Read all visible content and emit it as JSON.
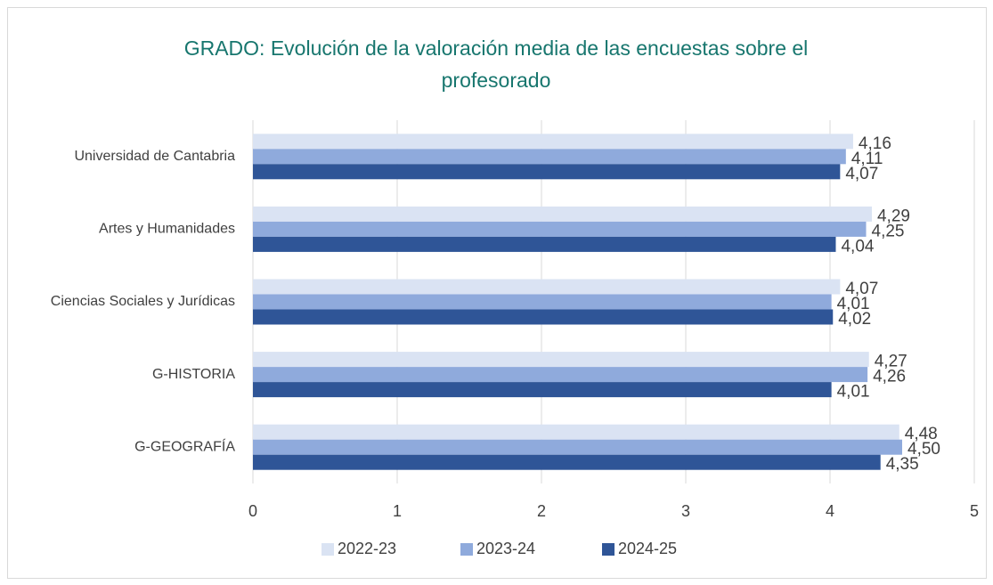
{
  "chart_data": {
    "type": "hbar",
    "title": "GRADO: Evolución de la valoración media de las encuestas sobre el profesorado",
    "categories": [
      "Universidad de Cantabria",
      "Artes y Humanidades",
      "Ciencias Sociales y Jurídicas",
      "G-HISTORIA",
      "G-GEOGRAFÍA"
    ],
    "series": [
      {
        "name": "2022-23",
        "color": "#dae3f3",
        "values": [
          4.16,
          4.29,
          4.07,
          4.27,
          4.48
        ],
        "value_labels": [
          "4,16",
          "4,29",
          "4,07",
          "4,27",
          "4,48"
        ]
      },
      {
        "name": "2023-24",
        "color": "#8faadc",
        "values": [
          4.11,
          4.25,
          4.01,
          4.26,
          4.5
        ],
        "value_labels": [
          "4,11",
          "4,25",
          "4,01",
          "4,26",
          "4,50"
        ]
      },
      {
        "name": "2024-25",
        "color": "#2f5597",
        "values": [
          4.07,
          4.04,
          4.02,
          4.01,
          4.35
        ],
        "value_labels": [
          "4,07",
          "4,04",
          "4,02",
          "4,01",
          "4,35"
        ]
      }
    ],
    "xlim": [
      0,
      5
    ],
    "xticks": [
      0,
      1,
      2,
      3,
      4,
      5
    ],
    "grid": true,
    "legend": "bottom"
  }
}
